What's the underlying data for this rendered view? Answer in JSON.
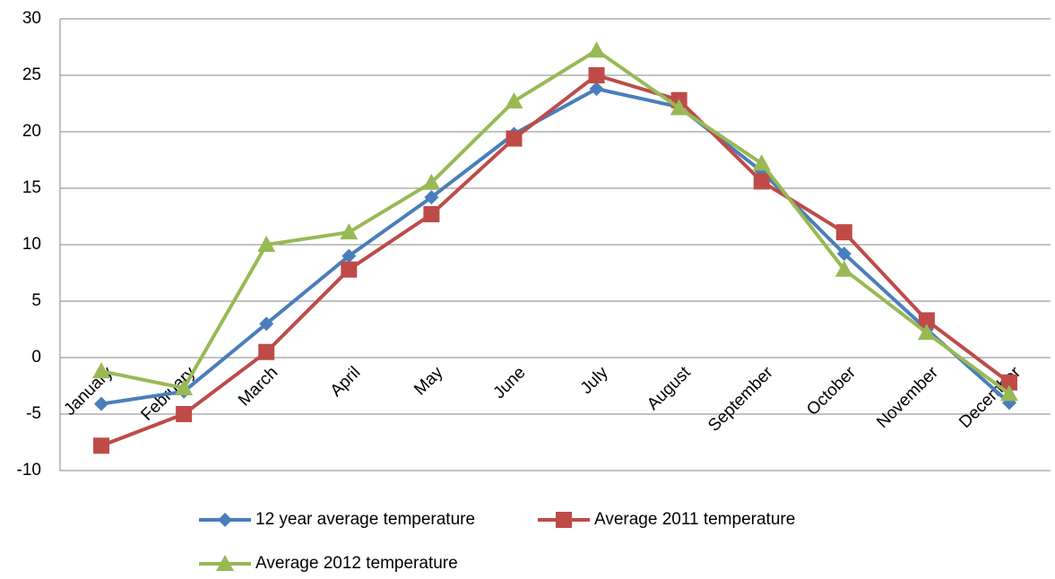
{
  "chart_data": {
    "type": "line",
    "categories": [
      "January",
      "February",
      "March",
      "April",
      "May",
      "June",
      "July",
      "August",
      "September",
      "October",
      "November",
      "December"
    ],
    "series": [
      {
        "name": "12 year average temperature",
        "color": "#4a7ebb",
        "marker": "diamond",
        "values": [
          -4.1,
          -3.0,
          3.0,
          9.0,
          14.2,
          19.8,
          23.8,
          22.2,
          16.5,
          9.2,
          2.5,
          -4.0
        ]
      },
      {
        "name": "Average 2011 temperature",
        "color": "#be4b48",
        "marker": "square",
        "values": [
          -7.8,
          -5.0,
          0.5,
          7.8,
          12.7,
          19.4,
          25.0,
          22.8,
          15.6,
          11.1,
          3.3,
          -2.2
        ]
      },
      {
        "name": "Average 2012 temperature",
        "color": "#98b954",
        "marker": "triangle",
        "values": [
          -1.2,
          -2.7,
          10.0,
          11.1,
          15.5,
          22.7,
          27.2,
          22.1,
          17.2,
          7.8,
          2.2,
          -3.2
        ]
      }
    ],
    "ylim": [
      -10,
      30
    ],
    "yticks": [
      -10,
      -5,
      0,
      5,
      10,
      15,
      20,
      25,
      30
    ],
    "grid": true,
    "legend": "bottom"
  }
}
